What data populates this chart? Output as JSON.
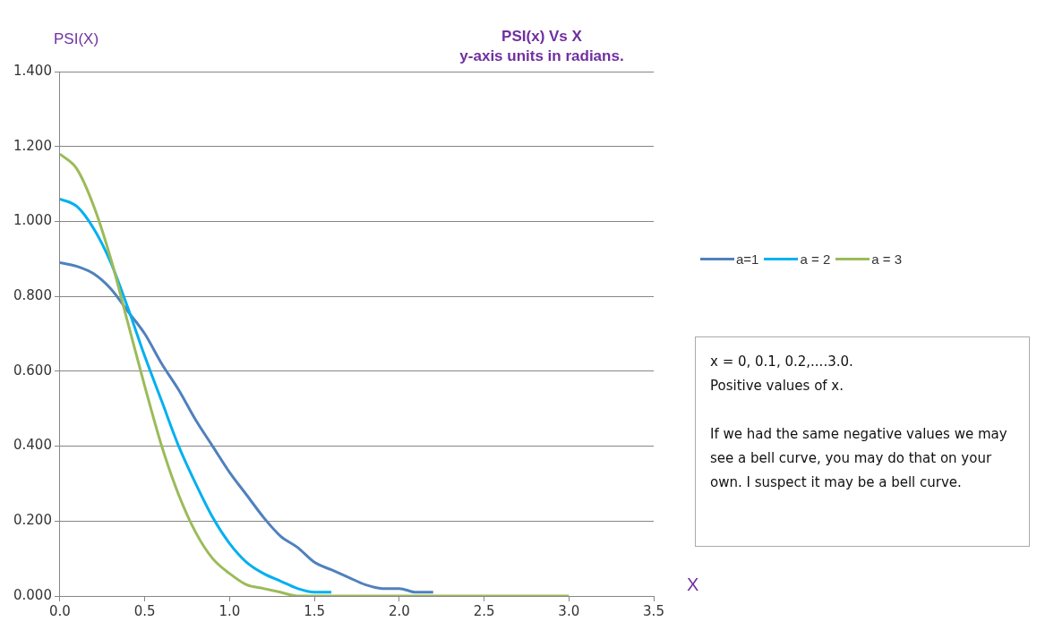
{
  "chart_data": {
    "type": "line",
    "title": "PSI(x) Vs X",
    "subtitle": "y-axis units in radians.",
    "ylabel": "PSI(X)",
    "xlabel": "X",
    "x": [
      0,
      0.1,
      0.2,
      0.3,
      0.4,
      0.5,
      0.6,
      0.7,
      0.8,
      0.9,
      1.0,
      1.1,
      1.2,
      1.3,
      1.4,
      1.5,
      1.6,
      1.7,
      1.8,
      1.9,
      2.0,
      2.1,
      2.2,
      2.3,
      2.4,
      2.5,
      2.6,
      2.7,
      2.8,
      2.9,
      3.0
    ],
    "series": [
      {
        "name": "a=1",
        "color": "#4f81bd",
        "values": [
          0.89,
          0.88,
          0.86,
          0.82,
          0.76,
          0.7,
          0.62,
          0.55,
          0.47,
          0.4,
          0.33,
          0.27,
          0.21,
          0.16,
          0.13,
          0.09,
          0.07,
          0.05,
          0.03,
          0.02,
          0.02,
          0.01,
          0.01,
          null,
          null,
          null,
          null,
          null,
          null,
          null,
          null
        ]
      },
      {
        "name": "a = 2",
        "color": "#00b0f0",
        "values": [
          1.06,
          1.04,
          0.98,
          0.89,
          0.77,
          0.64,
          0.52,
          0.4,
          0.3,
          0.21,
          0.14,
          0.09,
          0.06,
          0.04,
          0.02,
          0.01,
          0.01,
          null,
          null,
          null,
          null,
          null,
          null,
          null,
          null,
          null,
          null,
          null,
          null,
          null,
          null
        ]
      },
      {
        "name": "a = 3",
        "color": "#9bbb59",
        "values": [
          1.18,
          1.14,
          1.04,
          0.9,
          0.73,
          0.56,
          0.4,
          0.27,
          0.17,
          0.1,
          0.06,
          0.03,
          0.02,
          0.01,
          0,
          0,
          0,
          0,
          0,
          0,
          0,
          0,
          0,
          0,
          0,
          0,
          0,
          0,
          0,
          0,
          0
        ]
      }
    ],
    "xlim": [
      0,
      3.5
    ],
    "xticks": [
      {
        "value": 0,
        "label": "0.0"
      },
      {
        "value": 0.5,
        "label": "0.5"
      },
      {
        "value": 1,
        "label": "1.0"
      },
      {
        "value": 1.5,
        "label": "1.5"
      },
      {
        "value": 2,
        "label": "2.0"
      },
      {
        "value": 2.5,
        "label": "2.5"
      },
      {
        "value": 3,
        "label": "3.0"
      },
      {
        "value": 3.5,
        "label": "3.5"
      }
    ],
    "ylim": [
      0,
      1.4
    ],
    "yticks": [
      {
        "value": 0,
        "label": "0.000"
      },
      {
        "value": 0.2,
        "label": "0.200"
      },
      {
        "value": 0.4,
        "label": "0.400"
      },
      {
        "value": 0.6,
        "label": "0.600"
      },
      {
        "value": 0.8,
        "label": "0.800"
      },
      {
        "value": 1.0,
        "label": "1.000"
      },
      {
        "value": 1.2,
        "label": "1.200"
      },
      {
        "value": 1.4,
        "label": "1.400"
      }
    ],
    "grid": "y",
    "legend": "right",
    "annotations": [
      "x = 0, 0.1, 0.2,....3.0.\nPositive values of x.\n\nIf we had the same negative values we may see a bell curve, you may do that on your own. I suspect it may be a bell curve."
    ]
  }
}
